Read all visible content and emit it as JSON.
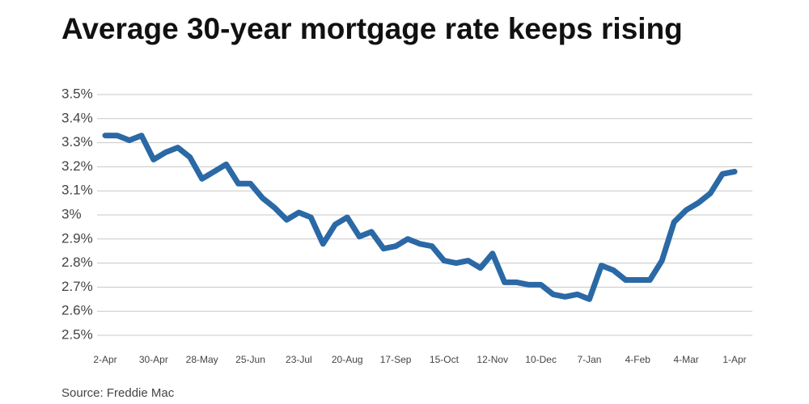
{
  "chart_data": {
    "type": "line",
    "title": "Average 30-year mortgage rate keeps rising",
    "source": "Source: Freddie Mac",
    "categories": [
      "2-Apr",
      null,
      null,
      null,
      "30-Apr",
      null,
      null,
      null,
      "28-May",
      null,
      null,
      null,
      "25-Jun",
      null,
      null,
      null,
      "23-Jul",
      null,
      null,
      null,
      "20-Aug",
      null,
      null,
      null,
      "17-Sep",
      null,
      null,
      null,
      "15-Oct",
      null,
      null,
      null,
      "12-Nov",
      null,
      null,
      null,
      "10-Dec",
      null,
      null,
      null,
      "7-Jan",
      null,
      null,
      null,
      "4-Feb",
      null,
      null,
      null,
      "4-Mar",
      null,
      null,
      null,
      "1-Apr"
    ],
    "series": [
      {
        "color": "#2a69a5",
        "values": [
          3.33,
          3.33,
          3.31,
          3.33,
          3.23,
          3.26,
          3.28,
          3.24,
          3.15,
          3.18,
          3.21,
          3.13,
          3.13,
          3.07,
          3.03,
          2.98,
          3.01,
          2.99,
          2.88,
          2.96,
          2.99,
          2.91,
          2.93,
          2.86,
          2.87,
          2.9,
          2.88,
          2.87,
          2.81,
          2.8,
          2.81,
          2.78,
          2.84,
          2.72,
          2.72,
          2.71,
          2.71,
          2.67,
          2.66,
          2.67,
          2.65,
          2.79,
          2.77,
          2.73,
          2.73,
          2.73,
          2.81,
          2.97,
          3.02,
          3.05,
          3.09,
          3.17,
          3.18
        ]
      }
    ],
    "ylim": [
      2.5,
      3.5
    ],
    "yticks": [
      {
        "value": 3.5,
        "label": "3.5%"
      },
      {
        "value": 3.4,
        "label": "3.4%"
      },
      {
        "value": 3.3,
        "label": "3.3%"
      },
      {
        "value": 3.2,
        "label": "3.2%"
      },
      {
        "value": 3.1,
        "label": "3.1%"
      },
      {
        "value": 3,
        "label": "3%"
      },
      {
        "value": 2.9,
        "label": "2.9%"
      },
      {
        "value": 2.8,
        "label": "2.8%"
      },
      {
        "value": 2.7,
        "label": "2.7%"
      },
      {
        "value": 2.6,
        "label": "2.6%"
      },
      {
        "value": 2.5,
        "label": "2.5%"
      }
    ],
    "grid": true
  }
}
